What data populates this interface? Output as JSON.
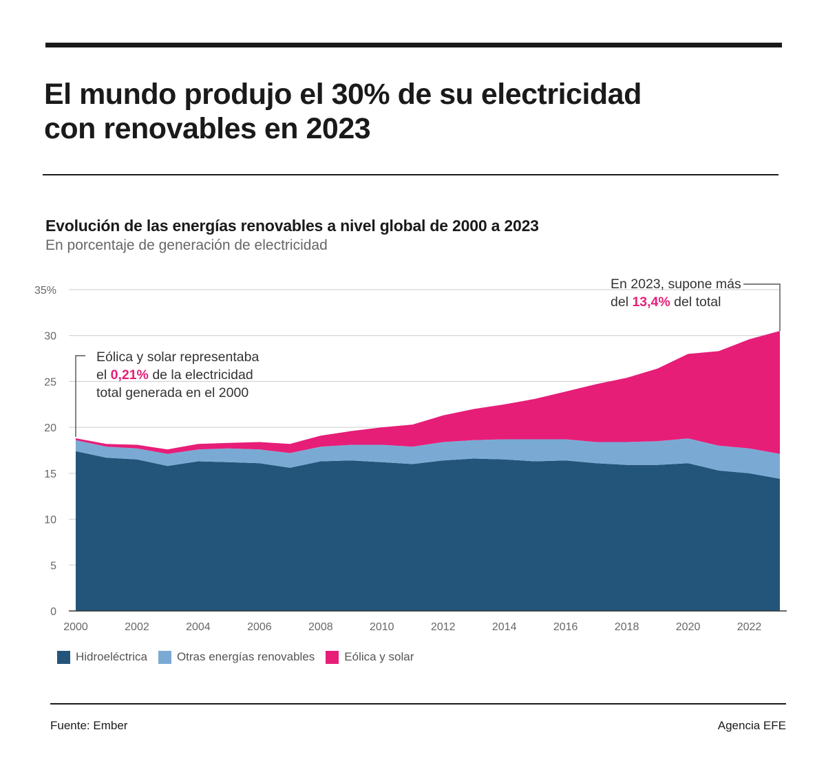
{
  "headline": {
    "line1": "El mundo produjo el 30% de su electricidad",
    "line2": "con renovables en 2023"
  },
  "chart": {
    "title": "Evolución de las energías renovables a nivel global de 2000 a 2023",
    "subtitle": "En porcentaje de generación de electricidad"
  },
  "annotations": {
    "a2000": {
      "line1": "Eólica y solar representaba",
      "line2_pre": "el ",
      "line2_value": "0,21%",
      "line2_post": " de la electricidad",
      "line3": "total generada en el 2000"
    },
    "a2023": {
      "line1": "En 2023, supone más",
      "line2_pre": "del ",
      "line2_value": "13,4%",
      "line2_post": " del total"
    }
  },
  "legend": {
    "hydro": "Hidroeléctrica",
    "other": "Otras energías renovables",
    "windsolar": "Eólica y solar"
  },
  "colors": {
    "hydro": "#23557a",
    "other": "#7aaad4",
    "windsolar": "#e61e78",
    "highlight": "#e61e78",
    "grid": "#cccccc",
    "axis": "#333333",
    "tick": "#666666"
  },
  "footer": {
    "source": "Fuente: Ember",
    "agency": "Agencia EFE"
  },
  "chart_data": {
    "type": "area",
    "stacked": true,
    "title": "Evolución de las energías renovables a nivel global de 2000 a 2023",
    "subtitle": "En porcentaje de generación de electricidad",
    "x": [
      2000,
      2001,
      2002,
      2003,
      2004,
      2005,
      2006,
      2007,
      2008,
      2009,
      2010,
      2011,
      2012,
      2013,
      2014,
      2015,
      2016,
      2017,
      2018,
      2019,
      2020,
      2021,
      2022,
      2023
    ],
    "xticks": [
      "2000",
      "2002",
      "2004",
      "2006",
      "2008",
      "2010",
      "2012",
      "2014",
      "2016",
      "2018",
      "2020",
      "2022"
    ],
    "ylim": [
      0,
      35
    ],
    "yticks": [
      "0",
      "5",
      "10",
      "15",
      "20",
      "25",
      "30",
      "35%"
    ],
    "grid": true,
    "legend_position": "bottom-left",
    "series": [
      {
        "name": "Hidroeléctrica",
        "values": [
          17.4,
          16.7,
          16.5,
          15.8,
          16.3,
          16.2,
          16.1,
          15.6,
          16.3,
          16.4,
          16.2,
          16.0,
          16.4,
          16.6,
          16.5,
          16.3,
          16.4,
          16.1,
          15.9,
          15.9,
          16.1,
          15.3,
          15.0,
          14.4
        ]
      },
      {
        "name": "Otras energías renovables",
        "values": [
          1.2,
          1.2,
          1.2,
          1.3,
          1.3,
          1.5,
          1.5,
          1.6,
          1.6,
          1.7,
          1.9,
          1.9,
          2.0,
          2.0,
          2.2,
          2.4,
          2.3,
          2.3,
          2.5,
          2.6,
          2.7,
          2.7,
          2.7,
          2.7
        ]
      },
      {
        "name": "Eólica y solar",
        "values": [
          0.21,
          0.3,
          0.4,
          0.5,
          0.6,
          0.6,
          0.8,
          1.0,
          1.2,
          1.5,
          1.9,
          2.4,
          2.9,
          3.4,
          3.8,
          4.4,
          5.2,
          6.3,
          7.0,
          7.9,
          9.2,
          10.3,
          11.9,
          13.4
        ]
      }
    ]
  }
}
